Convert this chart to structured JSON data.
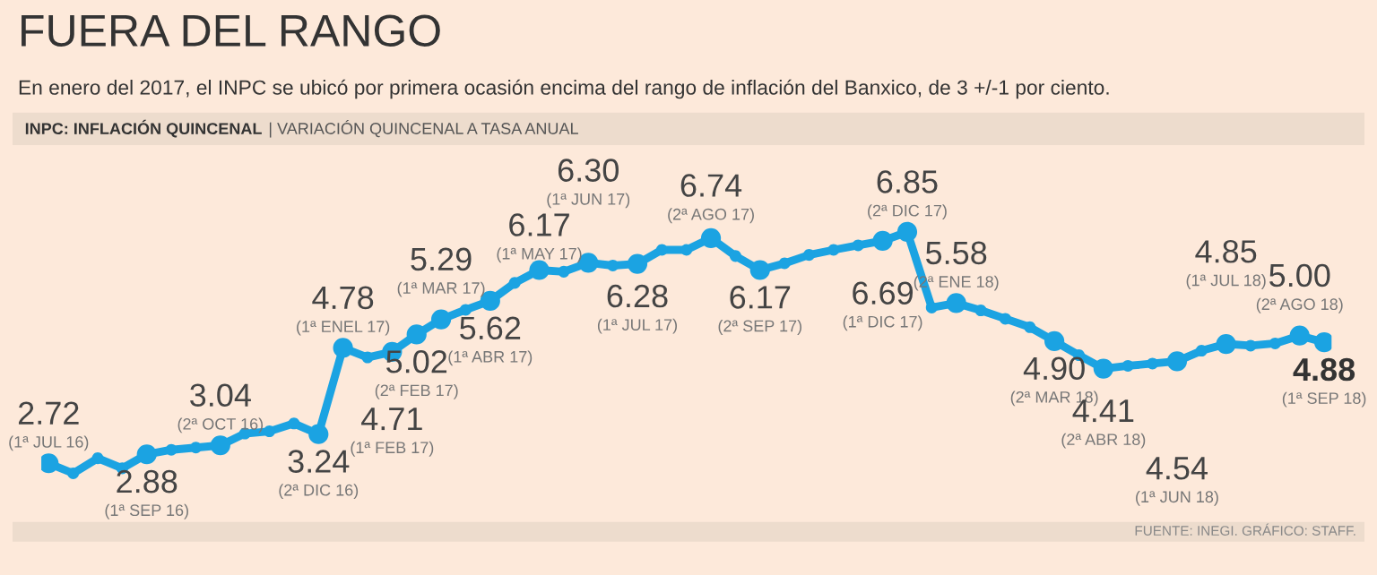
{
  "chart_data": {
    "type": "line",
    "title": "FUERA DEL RANGO",
    "subtitle": "En enero del 2017, el INPC se ubicó por primera ocasión encima del rango de inflación del Banxico, de 3 +/-1 por ciento.",
    "annotations": [
      "INPC: INFLACIÓN QUINCENAL",
      "| VARIACIÓN QUINCENAL A TASA ANUAL",
      "FUENTE: INEGI. GRÁFICO: STAFF."
    ],
    "categories": [
      "(1ª JUL 16)",
      null,
      null,
      null,
      "(1ª SEP 16)",
      null,
      null,
      "(2ª OCT 16)",
      null,
      null,
      null,
      "(2ª DIC 16)",
      "(1ª ENEL 17)",
      null,
      "(1ª FEB 17)",
      "(2ª FEB 17)",
      "(1ª MAR 17)",
      null,
      "(1ª ABR 17)",
      null,
      "(1ª MAY 17)",
      null,
      "(1ª JUN 17)",
      null,
      "(1ª JUL 17)",
      null,
      null,
      "(2ª AGO 17)",
      null,
      "(2ª SEP 17)",
      null,
      null,
      null,
      null,
      "(1ª DIC 17)",
      "(2ª DIC 17)",
      null,
      "(2ª ENE 18)",
      null,
      null,
      null,
      "(2ª MAR 18)",
      null,
      "(2ª ABR 18)",
      null,
      null,
      "(1ª JUN 18)",
      null,
      "(1ª JUL 18)",
      null,
      null,
      "(2ª AGO 18)",
      "(1ª SEP 18)"
    ],
    "values": [
      2.72,
      2.54,
      2.81,
      2.63,
      2.88,
      2.96,
      3.0,
      3.04,
      3.25,
      3.29,
      3.43,
      3.24,
      4.78,
      4.61,
      4.71,
      5.02,
      5.29,
      5.46,
      5.62,
      5.94,
      6.17,
      6.14,
      6.3,
      6.25,
      6.28,
      6.53,
      6.53,
      6.74,
      6.42,
      6.17,
      6.29,
      6.44,
      6.53,
      6.61,
      6.69,
      6.85,
      5.5,
      5.58,
      5.45,
      5.3,
      5.15,
      4.9,
      4.65,
      4.41,
      4.46,
      4.5,
      4.54,
      4.73,
      4.85,
      4.82,
      4.86,
      5.0,
      4.88
    ],
    "value_labels": [
      "2.72",
      null,
      null,
      null,
      "2.88",
      null,
      null,
      "3.04",
      null,
      null,
      null,
      "3.24",
      "4.78",
      null,
      "4.71",
      "5.02",
      "5.29",
      null,
      "5.62",
      null,
      "6.17",
      null,
      "6.30",
      null,
      "6.28",
      null,
      null,
      "6.74",
      null,
      "6.17",
      null,
      null,
      null,
      null,
      "6.69",
      "6.85",
      null,
      "5.58",
      null,
      null,
      null,
      "4.90",
      null,
      "4.41",
      null,
      null,
      "4.54",
      null,
      "4.85",
      null,
      null,
      "5.00",
      "4.88"
    ],
    "color": "#1ba3e2",
    "marker": "circle",
    "line_style": "solid"
  }
}
